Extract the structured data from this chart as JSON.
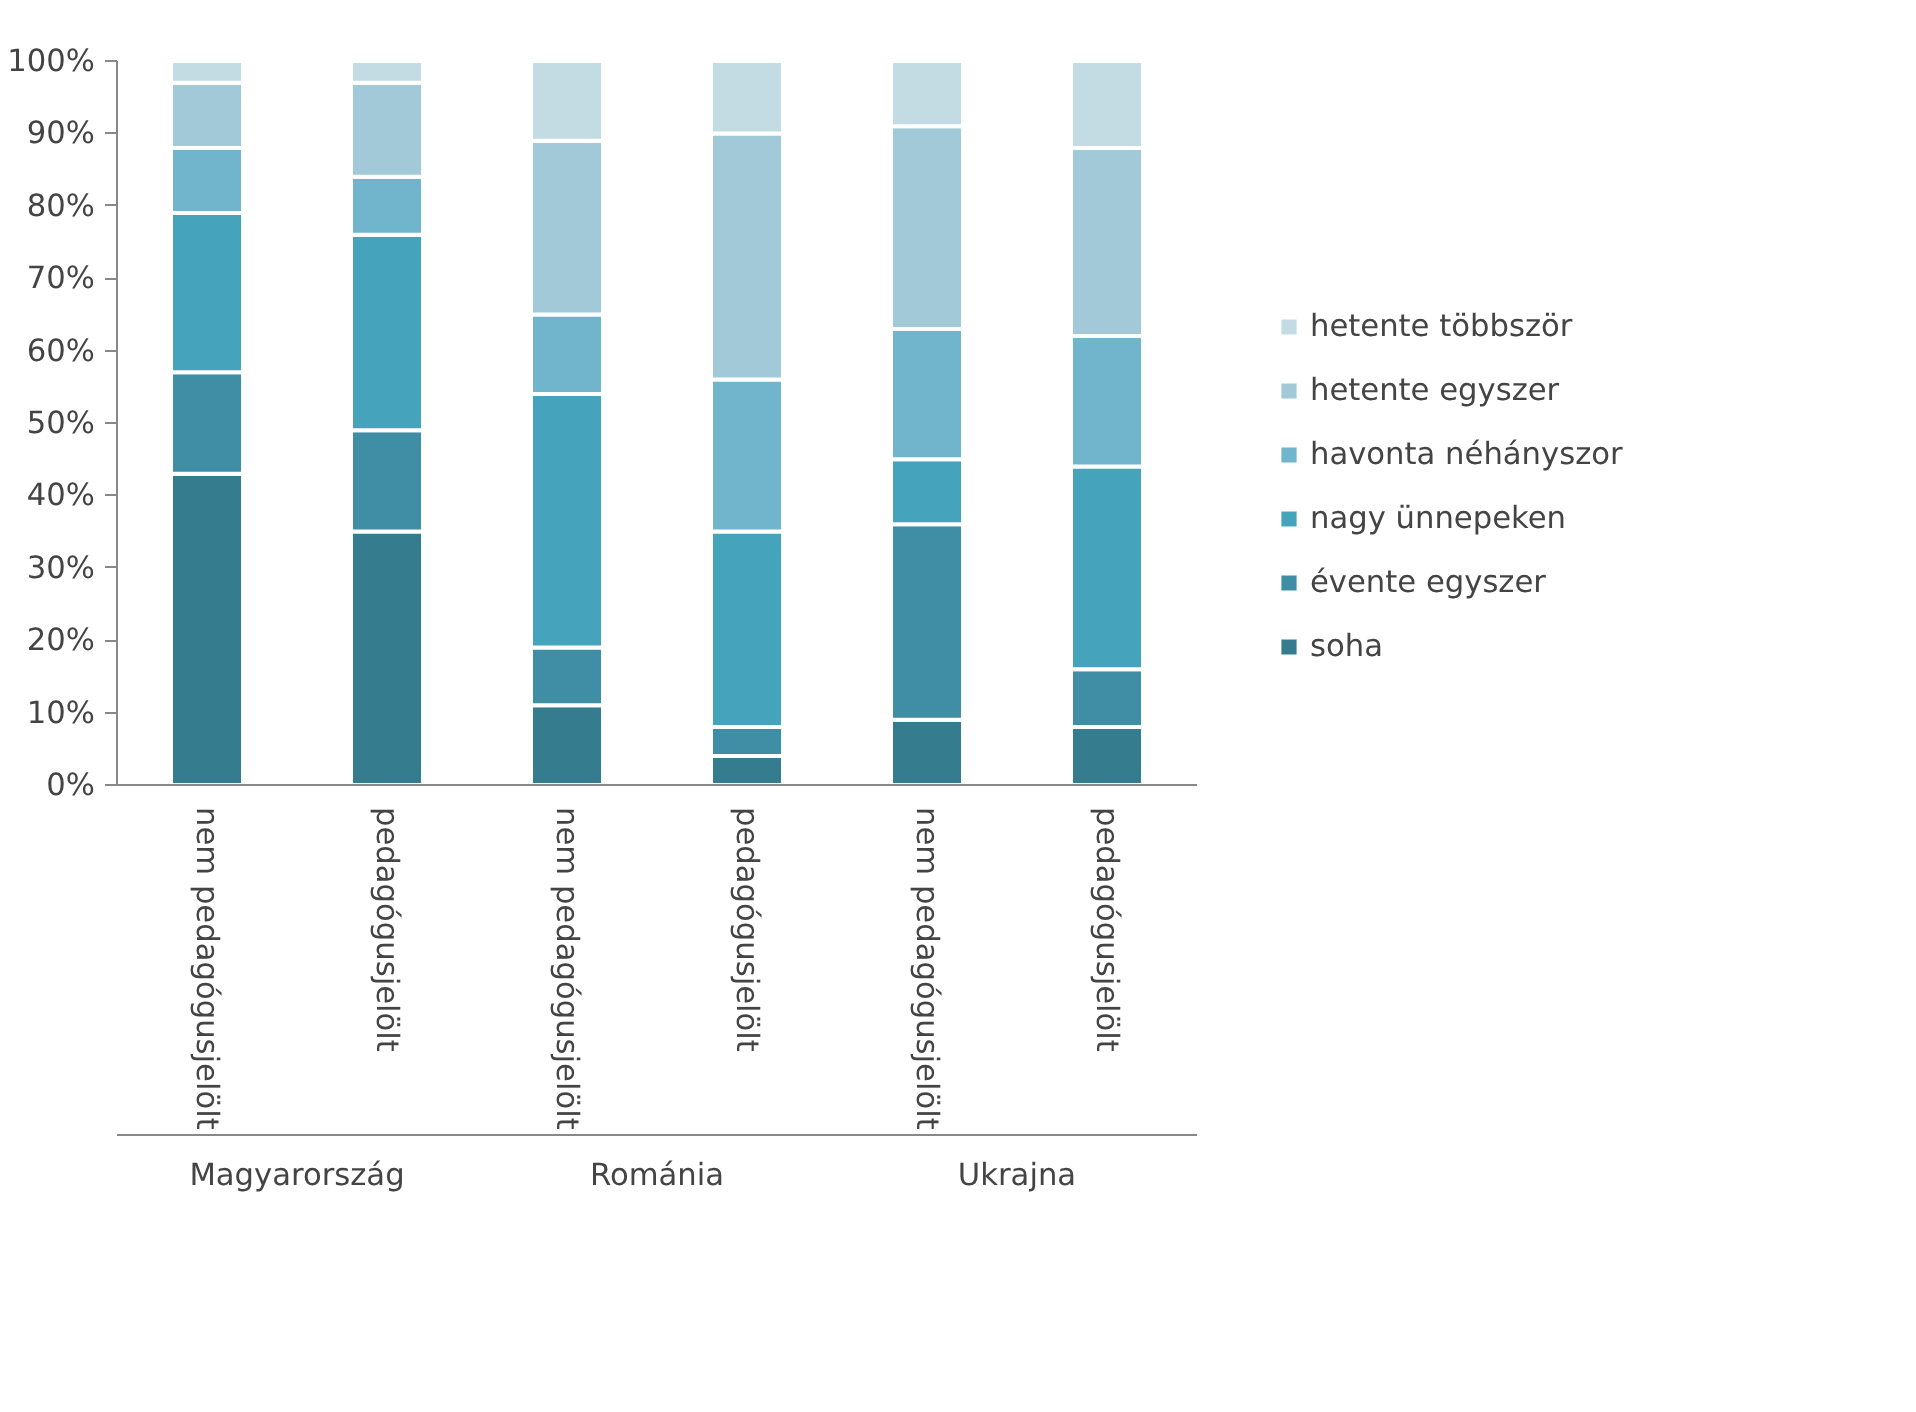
{
  "chart_data": {
    "type": "bar",
    "stacked": true,
    "categories": [
      "nem pedagógusjelölt",
      "pedagógusjelölt",
      "nem pedagógusjelölt",
      "pedagógusjelölt",
      "nem pedagógusjelölt",
      "pedagógusjelölt"
    ],
    "annotations": [
      "Magyarország",
      "Románia",
      "Ukrajna"
    ],
    "series": [
      {
        "name": "soha",
        "color": "#367c8f",
        "values": [
          43,
          35,
          11,
          4,
          9,
          8
        ]
      },
      {
        "name": "évente egyszer",
        "color": "#3f8ea6",
        "values": [
          14,
          14,
          8,
          4,
          27,
          8
        ]
      },
      {
        "name": "nagy ünnepeken",
        "color": "#46a3bc",
        "values": [
          22,
          27,
          35,
          27,
          9,
          28
        ]
      },
      {
        "name": "havonta néhányszor",
        "color": "#70b5cb",
        "values": [
          9,
          8,
          11,
          21,
          18,
          18
        ]
      },
      {
        "name": "hetente egyszer",
        "color": "#a1c9d8",
        "values": [
          9,
          13,
          24,
          34,
          28,
          26
        ]
      },
      {
        "name": "hetente többször",
        "color": "#c3dce4",
        "values": [
          3,
          3,
          11,
          10,
          9,
          12
        ]
      }
    ],
    "ylim": [
      0,
      100
    ],
    "yticks": [
      {
        "value": 0,
        "label": "0%"
      },
      {
        "value": 10,
        "label": "10%"
      },
      {
        "value": 20,
        "label": "20%"
      },
      {
        "value": 30,
        "label": "30%"
      },
      {
        "value": 40,
        "label": "40%"
      },
      {
        "value": 50,
        "label": "50%"
      },
      {
        "value": 60,
        "label": "60%"
      },
      {
        "value": 70,
        "label": "70%"
      },
      {
        "value": 80,
        "label": "80%"
      },
      {
        "value": 90,
        "label": "90%"
      },
      {
        "value": 100,
        "label": "100%"
      }
    ],
    "grid": false,
    "legend": "right"
  }
}
